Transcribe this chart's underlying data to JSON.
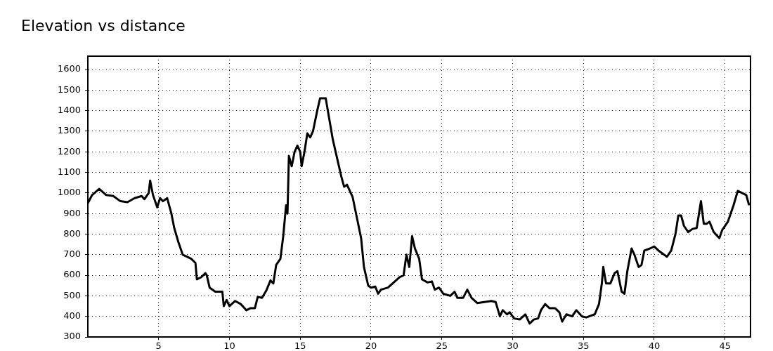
{
  "chart_data": {
    "type": "line",
    "title": "Elevation vs distance",
    "xlim": [
      0,
      46.8
    ],
    "xticks": [
      5,
      10,
      15,
      20,
      25,
      30,
      35,
      40,
      45
    ],
    "ylim": [
      300,
      1665
    ],
    "yticks": [
      300,
      400,
      500,
      600,
      700,
      800,
      900,
      1000,
      1100,
      1200,
      1300,
      1400,
      1500,
      1600
    ],
    "grid": true,
    "x": [
      0,
      0.3,
      0.8,
      1.3,
      1.8,
      2.3,
      2.8,
      3.3,
      3.8,
      4.0,
      4.3,
      4.4,
      4.6,
      4.9,
      5.1,
      5.3,
      5.6,
      5.9,
      6.1,
      6.4,
      6.7,
      7.0,
      7.3,
      7.6,
      7.7,
      8.0,
      8.3,
      8.4,
      8.6,
      9.0,
      9.5,
      9.6,
      9.8,
      10.0,
      10.4,
      10.8,
      11.2,
      11.5,
      11.8,
      12.0,
      12.3,
      12.6,
      12.9,
      13.1,
      13.3,
      13.6,
      13.8,
      14.0,
      14.1,
      14.2,
      14.4,
      14.6,
      14.8,
      15.0,
      15.1,
      15.3,
      15.5,
      15.7,
      15.9,
      16.2,
      16.4,
      16.8,
      17.0,
      17.3,
      17.6,
      17.9,
      18.1,
      18.3,
      18.5,
      18.7,
      19.0,
      19.3,
      19.5,
      19.8,
      20.0,
      20.3,
      20.5,
      20.7,
      21.2,
      21.6,
      22.0,
      22.3,
      22.5,
      22.7,
      22.9,
      23.1,
      23.4,
      23.6,
      24.0,
      24.3,
      24.5,
      24.8,
      25.1,
      25.6,
      25.9,
      26.1,
      26.5,
      26.8,
      27.1,
      27.5,
      28.0,
      28.5,
      28.8,
      29.1,
      29.3,
      29.6,
      29.8,
      30.1,
      30.5,
      30.9,
      31.2,
      31.5,
      31.8,
      32.0,
      32.3,
      32.6,
      33.0,
      33.3,
      33.5,
      33.8,
      34.2,
      34.5,
      34.9,
      35.2,
      35.8,
      36.1,
      36.3,
      36.4,
      36.6,
      36.9,
      37.2,
      37.4,
      37.7,
      37.9,
      38.1,
      38.4,
      38.6,
      38.9,
      39.1,
      39.3,
      39.7,
      40.0,
      40.3,
      40.9,
      41.2,
      41.5,
      41.7,
      41.9,
      42.1,
      42.4,
      42.7,
      43.0,
      43.3,
      43.5,
      43.7,
      43.9,
      44.2,
      44.6,
      44.8,
      45.2,
      45.6,
      45.9,
      46.2,
      46.5,
      46.7
    ],
    "series": [
      {
        "color": "#000000",
        "values": [
          950,
          990,
          1020,
          990,
          985,
          960,
          955,
          975,
          985,
          970,
          1000,
          1060,
          990,
          930,
          975,
          960,
          975,
          900,
          830,
          760,
          700,
          690,
          680,
          660,
          580,
          590,
          610,
          600,
          540,
          520,
          520,
          450,
          480,
          450,
          475,
          460,
          430,
          440,
          440,
          495,
          490,
          525,
          575,
          560,
          650,
          680,
          790,
          940,
          900,
          1180,
          1130,
          1200,
          1230,
          1200,
          1130,
          1200,
          1290,
          1270,
          1300,
          1400,
          1460,
          1460,
          1380,
          1260,
          1170,
          1080,
          1030,
          1040,
          1010,
          980,
          880,
          780,
          640,
          550,
          540,
          545,
          510,
          530,
          540,
          565,
          590,
          600,
          700,
          640,
          790,
          730,
          680,
          580,
          565,
          570,
          530,
          540,
          510,
          500,
          520,
          490,
          490,
          530,
          490,
          465,
          470,
          475,
          470,
          400,
          430,
          410,
          420,
          390,
          385,
          410,
          365,
          385,
          390,
          430,
          460,
          440,
          440,
          420,
          375,
          410,
          400,
          430,
          400,
          395,
          410,
          460,
          560,
          640,
          560,
          560,
          610,
          620,
          520,
          510,
          620,
          730,
          700,
          640,
          650,
          720,
          730,
          740,
          720,
          690,
          720,
          800,
          890,
          890,
          840,
          810,
          825,
          830,
          960,
          850,
          850,
          860,
          810,
          780,
          820,
          860,
          940,
          1010,
          1000,
          990,
          940
        ]
      }
    ]
  }
}
